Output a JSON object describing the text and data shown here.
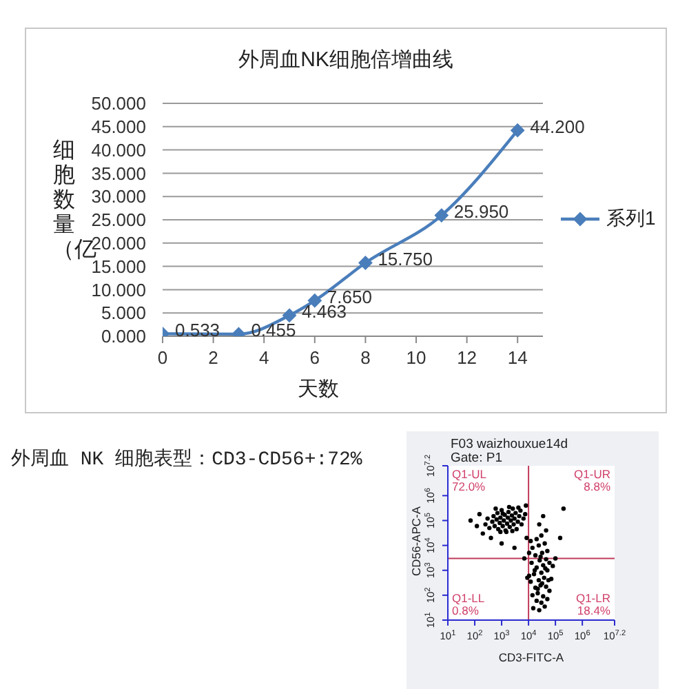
{
  "chart_data": [
    {
      "type": "line",
      "title": "外周血NK细胞倍增曲线",
      "xlabel": "天数",
      "ylabel": "细胞数量（亿",
      "x": [
        0,
        3,
        5,
        6,
        8,
        11,
        14
      ],
      "series": [
        {
          "name": "系列1",
          "color": "#4a7ebb",
          "values": [
            0.533,
            0.455,
            4.463,
            7.65,
            15.75,
            25.95,
            44.2
          ],
          "value_labels": [
            "0.533",
            "0.455",
            "4.463",
            "7.650",
            "15.750",
            "25.950",
            "44.200"
          ]
        }
      ],
      "xlim": [
        0,
        15
      ],
      "xticks": [
        0,
        2,
        4,
        6,
        8,
        10,
        12,
        14
      ],
      "ylim": [
        0,
        50
      ],
      "yticks": [
        {
          "value": 0,
          "label": "0.000"
        },
        {
          "value": 5,
          "label": "5.000"
        },
        {
          "value": 10,
          "label": "10.000"
        },
        {
          "value": 15,
          "label": "15.000"
        },
        {
          "value": 20,
          "label": "20.000"
        },
        {
          "value": 25,
          "label": "25.000"
        },
        {
          "value": 30,
          "label": "30.000"
        },
        {
          "value": 35,
          "label": "35.000"
        },
        {
          "value": 40,
          "label": "40.000"
        },
        {
          "value": 45,
          "label": "45.000"
        },
        {
          "value": 50,
          "label": "50.000"
        }
      ],
      "grid": "y",
      "legend": "right",
      "marker": "diamond",
      "line_style": "solid"
    },
    {
      "type": "other",
      "title": "外周血 NK 细胞表型：CD3-CD56+:72%"
    },
    {
      "type": "scatter",
      "title": "F03 waizhouxue14d",
      "subtitle": "Gate: P1",
      "xlabel": "CD3-FITC-A",
      "ylabel": "CD56-APC-A",
      "color": "#000000",
      "x": [
        250,
        300,
        350,
        450,
        500,
        550,
        650,
        700,
        750,
        850,
        900,
        1000,
        1100,
        1200,
        1300,
        1400,
        1600,
        1700,
        1800,
        2000,
        2200,
        2400,
        2600,
        2800,
        3000,
        3300,
        3600,
        4000,
        4500,
        5000,
        5500,
        6500,
        7500,
        1500,
        900,
        2500,
        1100,
        600,
        1900,
        4200,
        120,
        70,
        200,
        150,
        400,
        1000,
        3000,
        8000,
        15000,
        25000,
        40000,
        20000,
        30000,
        50000,
        14000,
        22000,
        35000,
        60000,
        18000,
        28000,
        45000,
        12000,
        24000,
        38000,
        70000,
        16000,
        30000,
        50000,
        20000,
        35000,
        13000,
        26000,
        45000,
        60000,
        18000,
        32000,
        50000,
        14000,
        24000,
        40000,
        20000,
        30000,
        45000,
        25000,
        35000,
        22000,
        32000,
        42000,
        17000,
        28000,
        55000,
        10500,
        10500,
        80000,
        100000,
        150000,
        200000,
        12000,
        9000,
        7000,
        8500
      ],
      "values": [
        70000,
        120000,
        50000,
        90000,
        150000,
        60000,
        110000,
        200000,
        45000,
        80000,
        130000,
        260000,
        60000,
        100000,
        170000,
        40000,
        75000,
        130000,
        220000,
        55000,
        100000,
        160000,
        300000,
        70000,
        120000,
        200000,
        45000,
        90000,
        150000,
        250000,
        70000,
        120000,
        180000,
        35000,
        35000,
        38000,
        190000,
        300000,
        350000,
        330000,
        60000,
        100000,
        30000,
        180000,
        20000,
        12000,
        8000,
        400000,
        30,
        25,
        35,
        60,
        50,
        70,
        100,
        120,
        90,
        150,
        200,
        250,
        220,
        350,
        400,
        500,
        450,
        700,
        800,
        1000,
        1300,
        1600,
        2000,
        2500,
        2800,
        2000,
        4000,
        5000,
        6000,
        8000,
        10000,
        12000,
        18000,
        25000,
        40000,
        70000,
        150000,
        180,
        300,
        1200,
        1000,
        3500,
        400,
        600,
        5000,
        1500,
        3000,
        20000,
        300000,
        15000,
        500,
        3000,
        20000
      ],
      "xlim": [
        10,
        15848932
      ],
      "ylim": [
        10,
        15848932
      ],
      "xticks": [
        {
          "value": 10,
          "label": "10$^{1}$"
        },
        {
          "value": 100,
          "label": "10$^{2}$"
        },
        {
          "value": 1000,
          "label": "10$^{3}$"
        },
        {
          "value": 10000,
          "label": "10$^{4}$"
        },
        {
          "value": 100000,
          "label": "10$^{5}$"
        },
        {
          "value": 1000000,
          "label": "10$^{6}$"
        },
        {
          "value": 15848932,
          "label": "10$^{7.2}$"
        }
      ],
      "yticks": [
        {
          "value": 10,
          "label": "10$^{1}$"
        },
        {
          "value": 100,
          "label": "10$^{2}$"
        },
        {
          "value": 1000,
          "label": "10$^{3}$"
        },
        {
          "value": 10000,
          "label": "10$^{4}$"
        },
        {
          "value": 100000,
          "label": "10$^{5}$"
        },
        {
          "value": 1000000,
          "label": "10$^{6}$"
        },
        {
          "value": 15848932,
          "label": "10$^{7.2}$"
        }
      ],
      "log": "xy",
      "ref_lines": [
        {
          "axis": "x",
          "value": 10000,
          "color": "#c03a5a"
        },
        {
          "axis": "y",
          "value": 3000,
          "color": "#c03a5a"
        }
      ],
      "annotations": [
        "Q1-UL",
        "72.0%",
        "Q1-UR",
        "8.8%",
        "Q1-LL",
        "0.8%",
        "Q1-LR",
        "18.4%"
      ],
      "marker": "circle"
    }
  ]
}
